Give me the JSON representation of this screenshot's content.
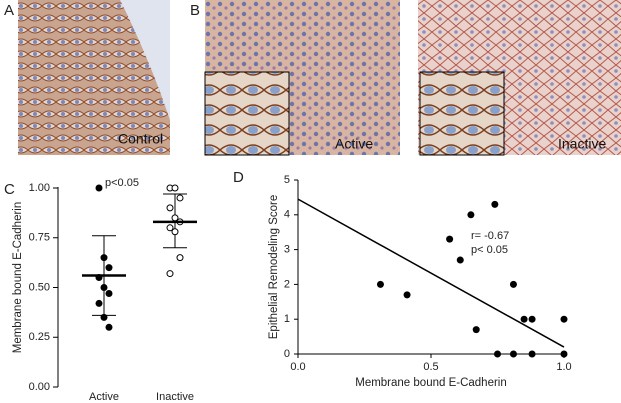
{
  "images": [
    {
      "letter": "A",
      "label": "Control"
    },
    {
      "letter": "B",
      "label": "Active"
    },
    {
      "label": "Inactive"
    }
  ],
  "chart_data": [
    {
      "type": "dot",
      "letter": "C",
      "ylabel": "Membrane bound E-Cadherin",
      "annotation": "p<0.05",
      "categories": [
        "Active",
        "Inactive"
      ],
      "values": [
        [
          1.0,
          0.65,
          0.6,
          0.55,
          0.5,
          0.47,
          0.42,
          0.35,
          0.3
        ],
        [
          1.0,
          1.0,
          0.95,
          0.9,
          0.85,
          0.83,
          0.8,
          0.78,
          0.65,
          0.57
        ]
      ],
      "marker_fill": [
        "#000000",
        "#ffffff"
      ],
      "means": [
        0.56,
        0.83
      ],
      "lower": [
        0.36,
        0.7
      ],
      "upper": [
        0.76,
        0.97
      ],
      "ylim": [
        0,
        1.0
      ],
      "yticks": [
        {
          "value": 0,
          "label": "0.00"
        },
        {
          "value": 0.25,
          "label": "0.25"
        },
        {
          "value": 0.5,
          "label": "0.50"
        },
        {
          "value": 0.75,
          "label": "0.75"
        },
        {
          "value": 1.0,
          "label": "1.00"
        }
      ]
    },
    {
      "type": "scatter",
      "letter": "D",
      "xlabel": "Membrane bound E-Cadherin",
      "ylabel": "Epithelial Remodeling Score",
      "annotations": [
        "r= -0.67",
        "p< 0.05"
      ],
      "x": [
        0.31,
        0.41,
        0.57,
        0.65,
        0.61,
        0.67,
        0.74,
        0.81,
        0.75,
        0.81,
        0.88,
        0.85,
        0.88,
        1.0,
        1.0
      ],
      "y": [
        2.0,
        1.7,
        3.3,
        4.0,
        2.7,
        0.7,
        4.3,
        2.0,
        0,
        0,
        0,
        1.0,
        1.0,
        1.0,
        0
      ],
      "color": "#000000",
      "fit": {
        "x": [
          0,
          1.0
        ],
        "y": [
          4.45,
          0.2
        ]
      },
      "xlim": [
        0,
        1.0
      ],
      "ylim": [
        0,
        5
      ],
      "xticks": [
        {
          "value": 0,
          "label": "0.0"
        },
        0.5,
        {
          "value": 1.0,
          "label": "1.0"
        }
      ],
      "yticks": [
        0,
        1,
        2,
        3,
        4,
        5
      ]
    }
  ]
}
